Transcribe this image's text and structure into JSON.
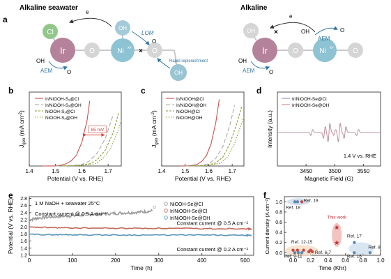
{
  "panel_a": {
    "letter": "a",
    "left_title": "Alkaline seawater",
    "right_title": "Alkaline",
    "left": {
      "cl": "Cl",
      "ir": "Ir",
      "o1": "O",
      "ni": "Ni",
      "ni_sup": "x+",
      "o2": "O",
      "oh_top": "OH",
      "oh_bottom": "OH",
      "electron": "e",
      "oh_aem": "OH",
      "aem": "AEM",
      "o2_aem": "O",
      "lom": "LOM",
      "o2_lom": "O",
      "rapid": "Rapid replenishment"
    },
    "right": {
      "oh_grey": "OH",
      "ir": "Ir",
      "o1": "O",
      "ni": "Ni",
      "ni_sup": "x+",
      "o2": "O",
      "electron": "e",
      "oh_top": "OH",
      "aem_top": "AEM",
      "o2_top": "O",
      "oh_aem": "OH",
      "aem": "AEM",
      "o2_aem": "O"
    },
    "colors": {
      "ir": "#b4829a",
      "ni": "#8ec3d3",
      "o": "#d5d5d5",
      "cl": "#92c78a",
      "oh": "#99c4d3",
      "red": "#d0403c",
      "blue": "#2f76a6"
    }
  },
  "chart_data": [
    {
      "panel": "b",
      "type": "line",
      "xlabel": "Potential (V vs. RHE)",
      "ylabel": "J",
      "ylabel_sub": "geo",
      "ylabel_unit": " (mA cm",
      "xlim": [
        1.4,
        1.75
      ],
      "xticks": [
        "1.4",
        "1.5",
        "1.6",
        "1.7"
      ],
      "annotation": "85 mV",
      "series": [
        {
          "name": "Ir/NiOOH-Sₓ@Cl",
          "color": "#c8504c",
          "dash": "",
          "x": [
            1.45,
            1.5,
            1.52,
            1.54,
            1.56,
            1.58,
            1.6,
            1.62,
            1.63
          ],
          "y": [
            0.0,
            0.002,
            0.01,
            0.03,
            0.07,
            0.15,
            0.32,
            0.62,
            0.88
          ]
        },
        {
          "name": "Ir/NiOOH-Sₓ@OH",
          "color": "#aaaaaa",
          "dash": "6,3",
          "x": [
            1.5,
            1.55,
            1.6,
            1.63,
            1.66,
            1.69,
            1.72
          ],
          "y": [
            0.0,
            0.003,
            0.02,
            0.07,
            0.18,
            0.38,
            0.7
          ]
        },
        {
          "name": "NiOOH-Sₓ@Cl",
          "color": "#8a9a30",
          "dash": "3,2",
          "x": [
            1.52,
            1.58,
            1.63,
            1.66,
            1.69,
            1.72,
            1.74
          ],
          "y": [
            0.0,
            0.004,
            0.03,
            0.09,
            0.22,
            0.46,
            0.72
          ]
        },
        {
          "name": "NiOOH-Sₓ@OH",
          "color": "#8a9a30",
          "dash": "1.5,2",
          "x": [
            1.53,
            1.6,
            1.65,
            1.68,
            1.71,
            1.74,
            1.75
          ],
          "y": [
            0.0,
            0.005,
            0.03,
            0.1,
            0.24,
            0.5,
            0.62
          ]
        }
      ]
    },
    {
      "panel": "c",
      "type": "line",
      "xlabel": "Potential (V vs. RHE)",
      "ylabel": "J",
      "ylabel_sub": "geo",
      "ylabel_unit": " (mA cm",
      "xlim": [
        1.4,
        1.75
      ],
      "xticks": [
        "1.4",
        "1.5",
        "1.6",
        "1.7"
      ],
      "series": [
        {
          "name": "Ir/NiOOH@Cl",
          "color": "#c8504c",
          "dash": "",
          "x": [
            1.48,
            1.52,
            1.55,
            1.57,
            1.59,
            1.61,
            1.63,
            1.645
          ],
          "y": [
            0.0,
            0.004,
            0.02,
            0.06,
            0.14,
            0.3,
            0.58,
            0.9
          ]
        },
        {
          "name": "Ir/NiOOH@OH",
          "color": "#aaaaaa",
          "dash": "6,3",
          "x": [
            1.5,
            1.56,
            1.6,
            1.63,
            1.66,
            1.69,
            1.71
          ],
          "y": [
            0.0,
            0.004,
            0.03,
            0.1,
            0.26,
            0.55,
            0.82
          ]
        },
        {
          "name": "NiOOH@Cl",
          "color": "#8a9a30",
          "dash": "3,2",
          "x": [
            1.52,
            1.58,
            1.63,
            1.66,
            1.69,
            1.72,
            1.74
          ],
          "y": [
            0.0,
            0.004,
            0.04,
            0.12,
            0.3,
            0.58,
            0.8
          ]
        },
        {
          "name": "NiOOH@OH",
          "color": "#8a9a30",
          "dash": "1.5,2",
          "x": [
            1.53,
            1.6,
            1.65,
            1.68,
            1.71,
            1.74,
            1.75
          ],
          "y": [
            0.0,
            0.005,
            0.04,
            0.12,
            0.3,
            0.58,
            0.66
          ]
        }
      ]
    },
    {
      "panel": "d",
      "type": "line",
      "xlabel": "Magnetic Field (G)",
      "ylabel": "Intensity (a.u.)",
      "xlim": [
        3400,
        3580
      ],
      "xticks": [
        "3450",
        "3500",
        "3550"
      ],
      "annotation": "1.4 V vs. RHE",
      "series": [
        {
          "name": "Ir/NiOOH-Se@Cl",
          "color": "#8c8cc8"
        },
        {
          "name": "Ir/NiOOH-Se@OH",
          "color": "#c88c8c"
        }
      ],
      "peak_fields": [
        3460,
        3482,
        3490,
        3500,
        3508,
        3518,
        3540
      ]
    },
    {
      "panel": "e",
      "type": "line",
      "xlabel": "Time (h)",
      "ylabel": "Potential (V vs. RHE)",
      "xlim": [
        0,
        520
      ],
      "ylim": [
        1.2,
        2.85
      ],
      "xticks": [
        "0",
        "100",
        "200",
        "300",
        "400",
        "500"
      ],
      "yticks": [
        "1.2",
        "1.4",
        "1.6",
        "1.8",
        "2.0",
        "2.2",
        "2.4",
        "2.6",
        "2.8"
      ],
      "conditions": "1 M NaOH + seawater 25°C",
      "labels": {
        "cc_top": "Constant current @ 0.5 A cm⁻²",
        "cc_mid": "Constant current @ 0.5 A cm⁻²",
        "cc_low": "Constant current @ 0.2 A cm⁻²"
      },
      "series": [
        {
          "name": "NiOOH-Se@Cl",
          "color": "#9a9a9a",
          "x": [
            0,
            20,
            50,
            80,
            110,
            140,
            170,
            200,
            230,
            260,
            285
          ],
          "y": [
            2.2,
            2.25,
            2.28,
            2.3,
            2.32,
            2.35,
            2.36,
            2.38,
            2.4,
            2.42,
            2.45
          ]
        },
        {
          "name": "Ir/NiOOH-Se@Cl",
          "color": "#c26a5c",
          "x": [
            0,
            50,
            100,
            200,
            300,
            400,
            500,
            515
          ],
          "y": [
            1.99,
            1.98,
            1.97,
            1.96,
            1.96,
            1.95,
            1.95,
            1.94
          ]
        },
        {
          "name": "Ir/NiOOH-Se@OH",
          "color": "#5d95bd",
          "x": [
            0,
            50,
            100,
            200,
            300,
            400,
            500,
            515
          ],
          "y": [
            1.79,
            1.78,
            1.78,
            1.77,
            1.77,
            1.77,
            1.76,
            1.76
          ]
        }
      ]
    },
    {
      "panel": "f",
      "type": "scatter",
      "xlabel": "Time (Khr)",
      "ylabel": "Current density (A cm⁻²)",
      "xlim": [
        -0.1,
        1.0
      ],
      "ylim": [
        -0.05,
        1.1
      ],
      "xticks": [
        "0.0",
        "0.2",
        "0.4",
        "0.6",
        "0.8",
        "1.0"
      ],
      "yticks": [
        "0.0",
        "0.2",
        "0.4",
        "0.6",
        "0.8",
        "1.0"
      ],
      "groups": [
        {
          "label": "Ref. 18",
          "color": "#5a86b0",
          "points": [
            [
              0.02,
              1.0
            ],
            [
              0.05,
              1.0
            ]
          ]
        },
        {
          "label": "Ref. 19",
          "color": "#c44b47",
          "points": [
            [
              0.1,
              1.0
            ]
          ]
        },
        {
          "label": "This work",
          "color": "#c8303a",
          "points": [
            [
              0.5,
              0.5
            ],
            [
              0.5,
              0.2
            ]
          ]
        },
        {
          "label": "Ref. 12-15",
          "color": "#c44b47",
          "points": [
            [
              0.0,
              0.05
            ],
            [
              0.05,
              0.05
            ],
            [
              0.12,
              0.05
            ],
            [
              0.2,
              0.05
            ]
          ]
        },
        {
          "label": "Ref. 9-11",
          "color": "#5a86b0",
          "points": [
            [
              0.02,
              0.0
            ],
            [
              0.06,
              0.0
            ],
            [
              0.1,
              0.0
            ]
          ]
        },
        {
          "label": "Ref. 6-7",
          "color": "#c44b47",
          "points": [
            [
              0.18,
              0.02
            ],
            [
              0.22,
              0.02
            ]
          ]
        },
        {
          "label": "Ref. 17",
          "color": "#5a86b0",
          "points": [
            [
              0.7,
              0.2
            ]
          ]
        },
        {
          "label": "Ref. 16",
          "color": "#5a86b0",
          "points": [
            [
              0.7,
              0.0
            ]
          ]
        },
        {
          "label": "Ref. 8",
          "color": "#5a86b0",
          "points": [
            [
              0.88,
              0.0
            ]
          ]
        }
      ]
    }
  ]
}
